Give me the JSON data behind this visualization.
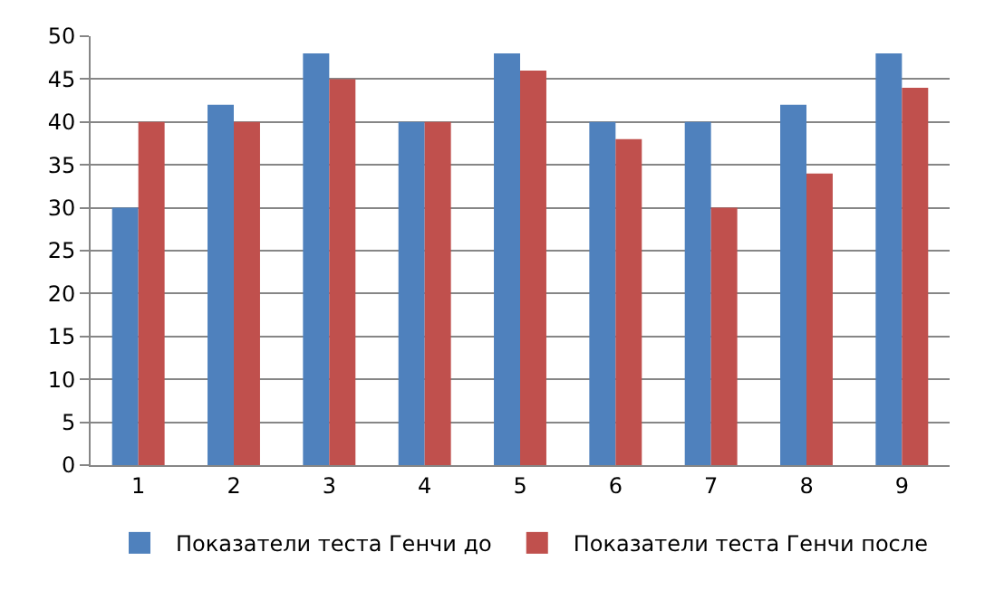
{
  "chart_data": {
    "type": "bar",
    "categories": [
      "1",
      "2",
      "3",
      "4",
      "5",
      "6",
      "7",
      "8",
      "9"
    ],
    "series": [
      {
        "name": "Показатели теста Генчи до",
        "color": "#4f81bd",
        "values": [
          30,
          42,
          48,
          40,
          48,
          40,
          40,
          42,
          48
        ]
      },
      {
        "name": "Показатели теста Генчи после",
        "color": "#c0504d",
        "values": [
          40,
          40,
          45,
          40,
          46,
          38,
          30,
          34,
          44
        ]
      }
    ],
    "ylim": [
      0,
      50
    ],
    "yticks": [
      0,
      5,
      10,
      15,
      20,
      25,
      30,
      35,
      40,
      45,
      50
    ],
    "grid": "y",
    "legend": "bottom"
  }
}
